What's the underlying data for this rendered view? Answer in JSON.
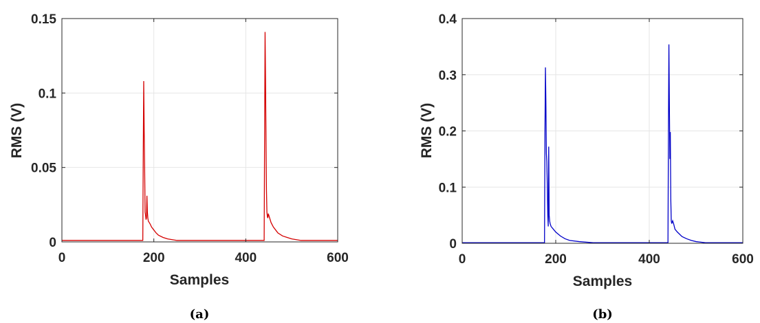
{
  "chart_data": [
    {
      "type": "line",
      "caption": "(a)",
      "xlabel": "Samples",
      "ylabel": "RMS (V)",
      "xlim": [
        0,
        600
      ],
      "ylim": [
        0,
        0.15
      ],
      "xticks": [
        0,
        200,
        400,
        600
      ],
      "yticks": [
        0,
        0.05,
        0.1,
        0.15
      ],
      "xtick_labels": [
        "0",
        "200",
        "400",
        "600"
      ],
      "ytick_labels": [
        "0",
        "0.05",
        "0.1",
        "0.15"
      ],
      "grid": true,
      "line_color": "#d40000",
      "series": [
        {
          "x": [
            0,
            100,
            176,
            177,
            178,
            179,
            180,
            181,
            182,
            183,
            184,
            185,
            186,
            187,
            188,
            190,
            192,
            195,
            200,
            205,
            210,
            220,
            230,
            240,
            250,
            270,
            300,
            350,
            400,
            440,
            442,
            443,
            444,
            445,
            446,
            447,
            448,
            449,
            450,
            452,
            455,
            460,
            465,
            470,
            480,
            490,
            500,
            520,
            550,
            600
          ],
          "y": [
            0.001,
            0.001,
            0.001,
            0.06,
            0.108,
            0.075,
            0.05,
            0.02,
            0.018,
            0.015,
            0.016,
            0.031,
            0.02,
            0.016,
            0.014,
            0.013,
            0.012,
            0.01,
            0.008,
            0.006,
            0.0045,
            0.003,
            0.002,
            0.0015,
            0.001,
            0.001,
            0.001,
            0.001,
            0.001,
            0.001,
            0.141,
            0.11,
            0.07,
            0.035,
            0.02,
            0.017,
            0.016,
            0.019,
            0.018,
            0.016,
            0.013,
            0.01,
            0.008,
            0.006,
            0.004,
            0.003,
            0.002,
            0.001,
            0.001,
            0.001
          ]
        }
      ]
    },
    {
      "type": "line",
      "caption": "(b)",
      "xlabel": "Samples",
      "ylabel": "RMS (V)",
      "xlim": [
        0,
        600
      ],
      "ylim": [
        0,
        0.4
      ],
      "xticks": [
        0,
        200,
        400,
        600
      ],
      "yticks": [
        0,
        0.1,
        0.2,
        0.3,
        0.4
      ],
      "xtick_labels": [
        "0",
        "200",
        "400",
        "600"
      ],
      "ytick_labels": [
        "0",
        "0.1",
        "0.2",
        "0.3",
        "0.4"
      ],
      "grid": true,
      "line_color": "#0000c8",
      "series": [
        {
          "x": [
            0,
            100,
            176,
            177,
            178,
            179,
            180,
            181,
            182,
            183,
            184,
            185,
            186,
            187,
            188,
            190,
            195,
            200,
            210,
            220,
            230,
            250,
            280,
            320,
            400,
            440,
            441,
            442,
            443,
            444,
            445,
            446,
            447,
            448,
            450,
            452,
            455,
            460,
            470,
            480,
            490,
            500,
            520,
            550,
            600
          ],
          "y": [
            0.001,
            0.001,
            0.001,
            0.2,
            0.313,
            0.25,
            0.16,
            0.145,
            0.1,
            0.05,
            0.03,
            0.172,
            0.05,
            0.04,
            0.035,
            0.03,
            0.025,
            0.02,
            0.013,
            0.008,
            0.005,
            0.003,
            0.001,
            0.001,
            0.001,
            0.001,
            0.2,
            0.354,
            0.25,
            0.15,
            0.198,
            0.08,
            0.04,
            0.035,
            0.04,
            0.035,
            0.025,
            0.02,
            0.012,
            0.008,
            0.005,
            0.003,
            0.001,
            0.001,
            0.001
          ]
        }
      ]
    }
  ]
}
